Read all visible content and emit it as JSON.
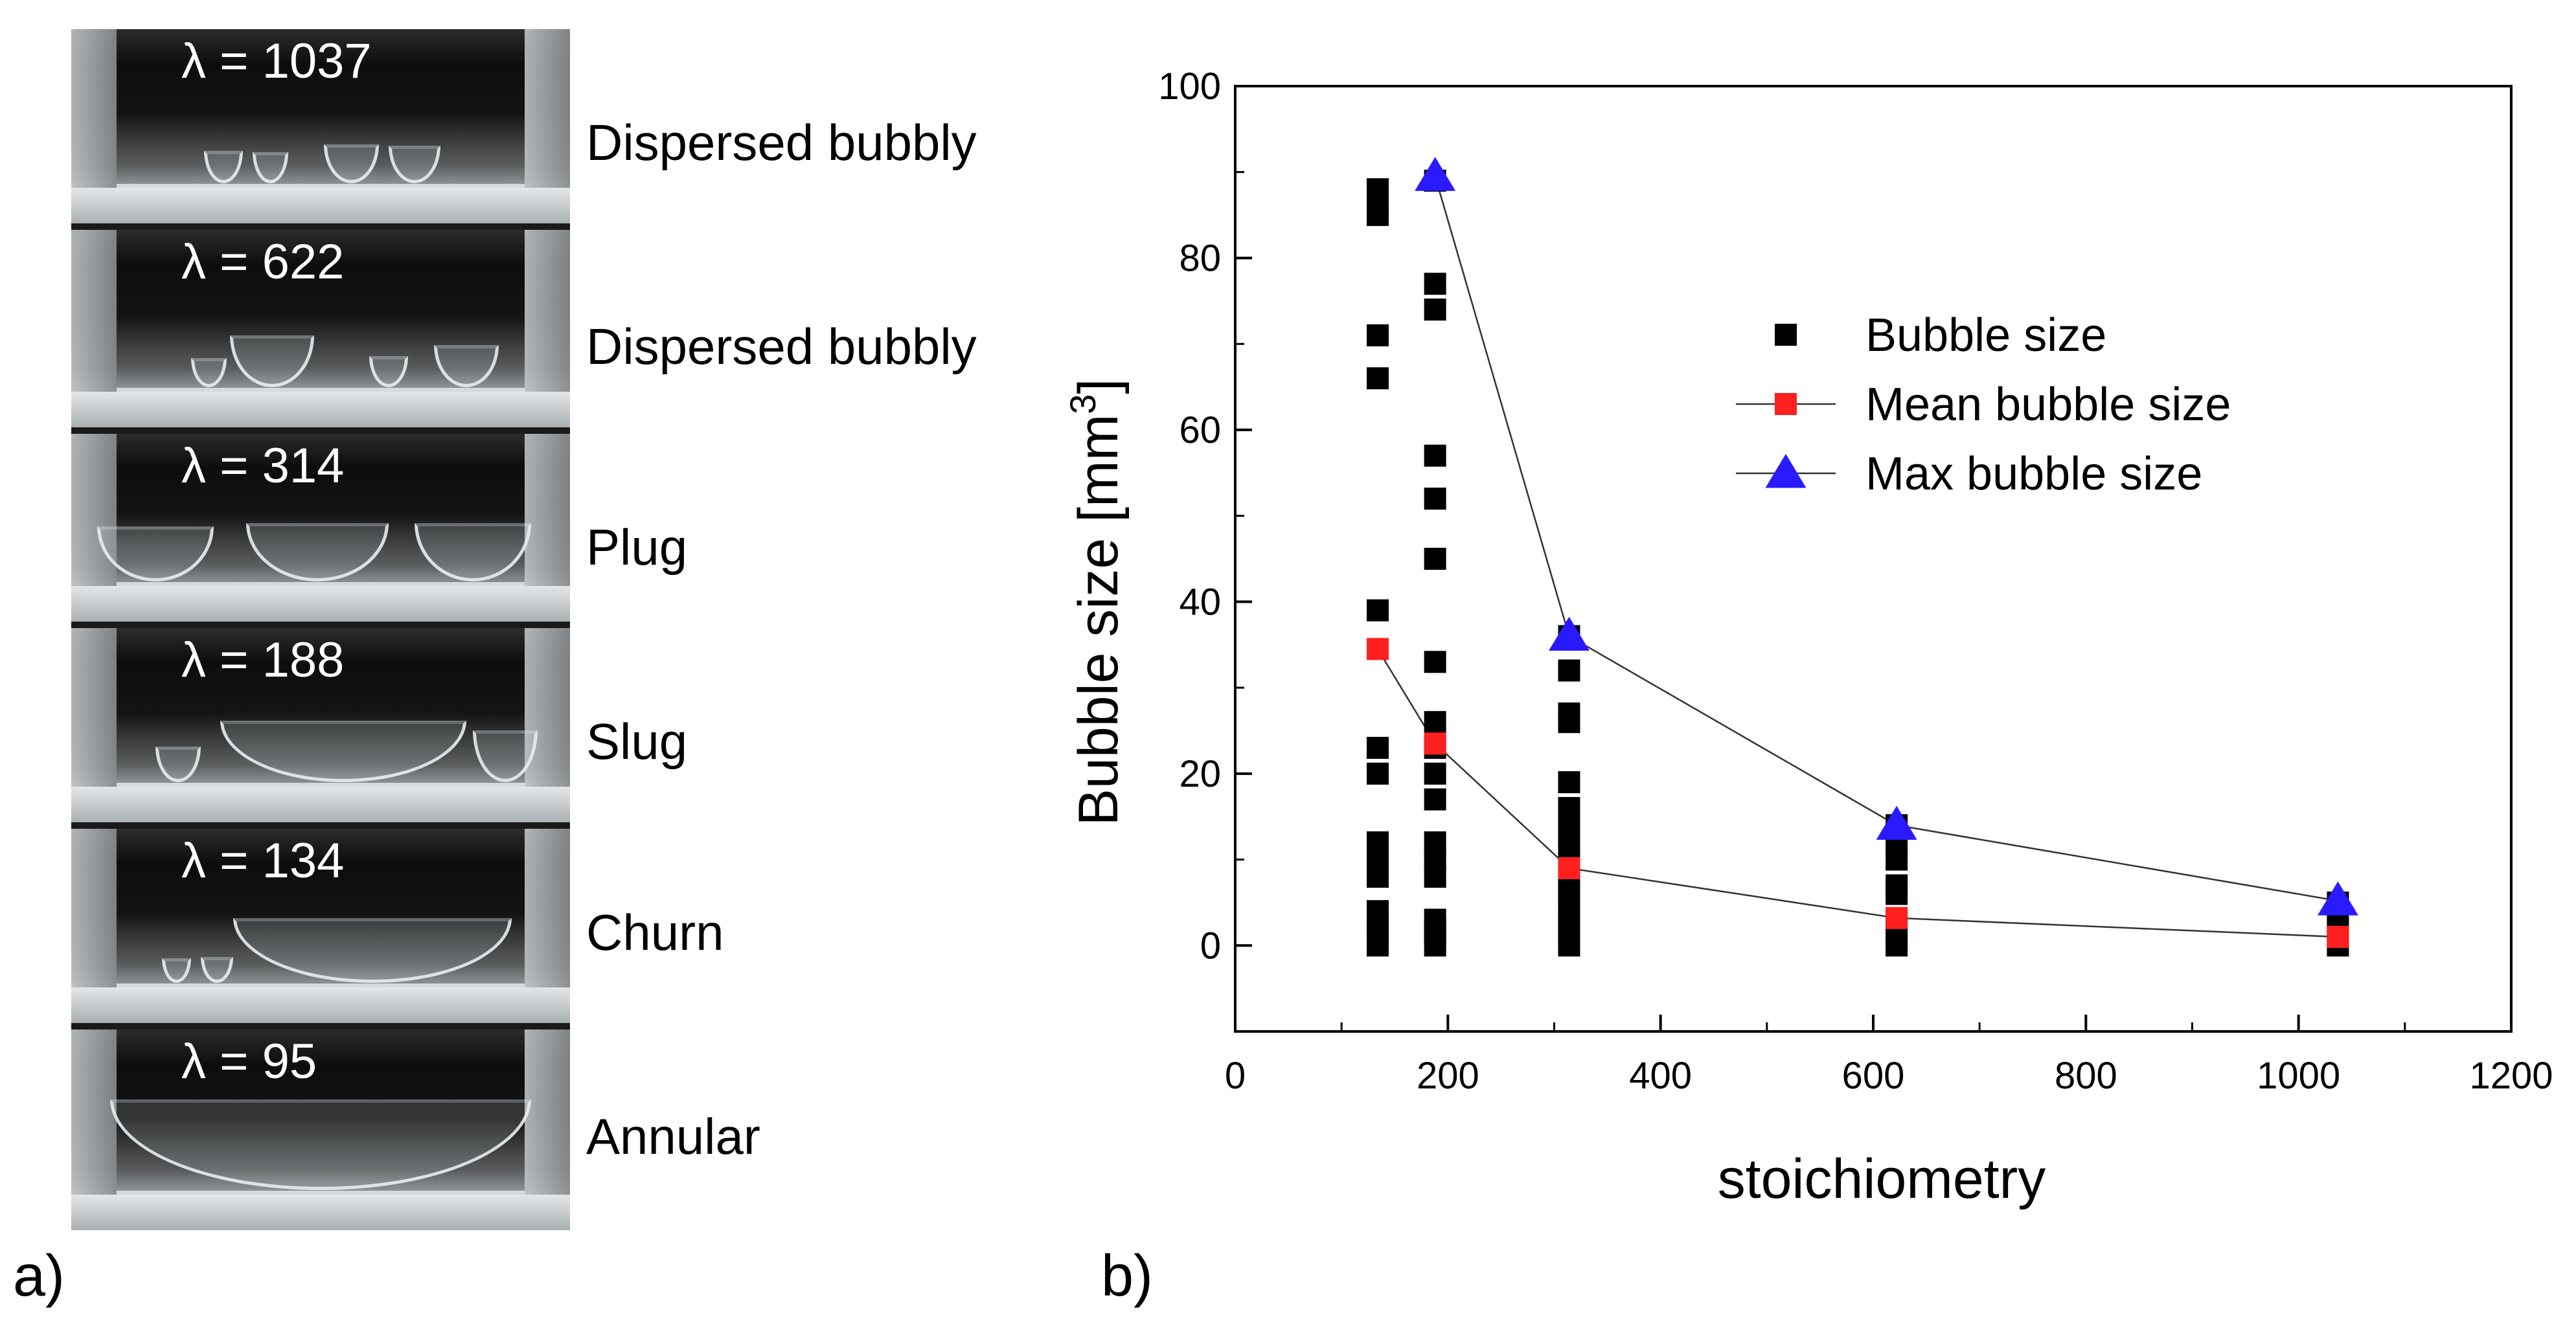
{
  "panels": {
    "a_label": "a)",
    "b_label": "b)",
    "frames": [
      {
        "lambda": "λ = 1037",
        "regime": "Dispersed bubbly"
      },
      {
        "lambda": "λ = 622",
        "regime": "Dispersed bubbly"
      },
      {
        "lambda": "λ = 314",
        "regime": "Plug"
      },
      {
        "lambda": "λ = 188",
        "regime": "Slug"
      },
      {
        "lambda": "λ = 134",
        "regime": "Churn"
      },
      {
        "lambda": "λ = 95",
        "regime": "Annular"
      }
    ]
  },
  "chart_data": {
    "type": "scatter",
    "xlabel": "stoichiometry",
    "ylabel": "Bubble size [mm",
    "ylabel_sup": "3",
    "ylabel_end": "]",
    "xlim": [
      0,
      1200
    ],
    "ylim": [
      -10,
      100
    ],
    "xticks": [
      0,
      200,
      400,
      600,
      800,
      1000,
      1200
    ],
    "yticks": [
      0,
      20,
      40,
      60,
      80,
      100
    ],
    "legend": {
      "placement": "top-right",
      "entries": [
        "Bubble size",
        "Mean bubble size",
        "Max bubble size"
      ]
    },
    "series": [
      {
        "name": "Bubble size",
        "marker": "square",
        "color": "#000000",
        "points": [
          [
            134,
            0
          ],
          [
            134,
            1
          ],
          [
            134,
            2
          ],
          [
            134,
            3
          ],
          [
            134,
            4
          ],
          [
            134,
            8
          ],
          [
            134,
            10
          ],
          [
            134,
            12
          ],
          [
            134,
            20
          ],
          [
            134,
            23
          ],
          [
            134,
            39
          ],
          [
            134,
            66
          ],
          [
            134,
            71
          ],
          [
            134,
            85
          ],
          [
            134,
            86
          ],
          [
            134,
            88
          ],
          [
            188,
            0
          ],
          [
            188,
            1
          ],
          [
            188,
            2
          ],
          [
            188,
            3
          ],
          [
            188,
            8
          ],
          [
            188,
            10
          ],
          [
            188,
            12
          ],
          [
            188,
            17
          ],
          [
            188,
            20
          ],
          [
            188,
            23
          ],
          [
            188,
            26
          ],
          [
            188,
            33
          ],
          [
            188,
            45
          ],
          [
            188,
            52
          ],
          [
            188,
            57
          ],
          [
            188,
            74
          ],
          [
            188,
            77
          ],
          [
            188,
            89
          ],
          [
            314,
            0
          ],
          [
            314,
            1
          ],
          [
            314,
            2
          ],
          [
            314,
            3
          ],
          [
            314,
            4
          ],
          [
            314,
            5
          ],
          [
            314,
            6
          ],
          [
            314,
            7
          ],
          [
            314,
            8
          ],
          [
            314,
            10
          ],
          [
            314,
            11
          ],
          [
            314,
            12
          ],
          [
            314,
            14
          ],
          [
            314,
            16
          ],
          [
            314,
            19
          ],
          [
            314,
            26
          ],
          [
            314,
            27
          ],
          [
            314,
            32
          ],
          [
            314,
            36
          ],
          [
            622,
            0
          ],
          [
            622,
            1
          ],
          [
            622,
            3
          ],
          [
            622,
            6
          ],
          [
            622,
            7
          ],
          [
            622,
            10
          ],
          [
            622,
            12
          ],
          [
            622,
            14
          ],
          [
            1037,
            0
          ],
          [
            1037,
            1
          ],
          [
            1037,
            2
          ],
          [
            1037,
            4
          ],
          [
            1037,
            5
          ]
        ]
      },
      {
        "name": "Mean bubble size",
        "marker": "square",
        "color": "#ff1f1f",
        "line_color": "#333333",
        "points": [
          [
            134,
            34.5
          ],
          [
            188,
            23.5
          ],
          [
            314,
            9
          ],
          [
            622,
            3.2
          ],
          [
            1037,
            1
          ]
        ]
      },
      {
        "name": "Max bubble size",
        "marker": "triangle",
        "color": "#2a1bff",
        "line_color": "#333333",
        "points": [
          [
            188,
            89.5
          ],
          [
            314,
            36
          ],
          [
            622,
            14
          ],
          [
            1037,
            5.2
          ]
        ]
      }
    ]
  }
}
